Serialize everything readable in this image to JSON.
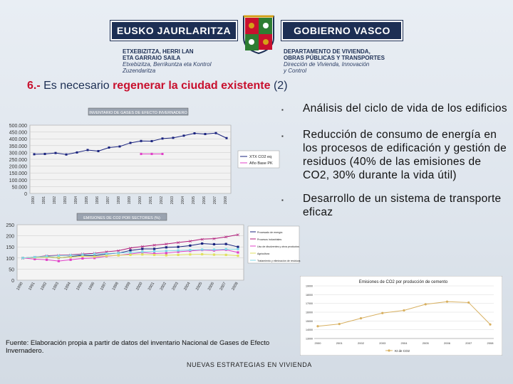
{
  "header": {
    "logo_left": "EUSKO JAURLARITZA",
    "logo_right": "GOBIERNO VASCO",
    "dept_left_bold": [
      "ETXEBIZITZA, HERRI LAN",
      "ETA GARRAIO SAILA"
    ],
    "dept_left_ital": [
      "Etxebizitza, Berrikuntza eta Kontrol",
      "Zuzendaritza"
    ],
    "dept_right_bold": [
      "DEPARTAMENTO DE VIVIENDA,",
      "OBRAS PÚBLICAS Y TRANSPORTES"
    ],
    "dept_right_ital": [
      "Dirección de Vivienda, Innovación",
      "y Control"
    ]
  },
  "title": {
    "num": "6.-",
    "plain": "Es necesario",
    "highlight": "regenerar la ciudad existente",
    "suffix": "(2)"
  },
  "bullets": [
    "Análisis del ciclo de vida de los edificios",
    "Reducción de consumo de energía en los procesos de edificación y gestión de residuos (40% de las emisiones de CO2, 30% durante la vida útil)",
    "Desarrollo de un sistema de transporte eficaz"
  ],
  "source": "Fuente: Elaboración propia a partir de datos del inventario Nacional de Gases de Efecto Invernadero.",
  "footer": "NUEVAS ESTRATEGIAS EN VIVIENDA",
  "colors": {
    "navy": "#1d2f54",
    "red": "#c8102e",
    "blue_series": "#1a237e",
    "magenta_series": "#e040c8",
    "orange_series": "#d8b060"
  },
  "chart_data": [
    {
      "type": "line",
      "title": "INVENTARIO DE GASES DE EFECTO INVERNADERO",
      "x": [
        "1990",
        "1991",
        "1992",
        "1993",
        "1994",
        "1995",
        "1996",
        "1997",
        "1998",
        "1999",
        "2000",
        "2001",
        "2002",
        "2003",
        "2004",
        "2005",
        "2006",
        "2007",
        "2008"
      ],
      "yticks": [
        "0",
        "50.000",
        "100.000",
        "150.000",
        "200.000",
        "250.000",
        "300.000",
        "350.000",
        "400.000",
        "450.000",
        "500.000"
      ],
      "ylim": [
        0,
        500000
      ],
      "series": [
        {
          "name": "XTX CO2 eq",
          "values": [
            287000,
            289000,
            296000,
            285000,
            300000,
            318000,
            310000,
            336000,
            344000,
            370000,
            384000,
            383000,
            402000,
            407000,
            423000,
            440000,
            435000,
            442000,
            405000
          ]
        },
        {
          "name": "Año Base PK",
          "values": [
            null,
            null,
            null,
            null,
            null,
            null,
            null,
            null,
            null,
            null,
            null,
            null,
            null,
            null,
            null,
            null,
            null,
            null,
            null
          ],
          "constant": 289000,
          "x_range": [
            "2000",
            "2002"
          ]
        }
      ],
      "legend": "right"
    },
    {
      "type": "line",
      "title": "EMISIONES DE CO2 POR SECTORES (%)",
      "x": [
        "1990",
        "1991",
        "1992",
        "1993",
        "1994",
        "1995",
        "1996",
        "1997",
        "1998",
        "1999",
        "2000",
        "2001",
        "2002",
        "2003",
        "2004",
        "2005",
        "2006",
        "2007",
        "2008"
      ],
      "yticks": [
        "0",
        "50",
        "100",
        "150",
        "200",
        "250"
      ],
      "ylim": [
        0,
        250
      ],
      "series": [
        {
          "name": "Procesado de energía",
          "values": [
            100,
            103,
            106,
            101,
            106,
            112,
            110,
            118,
            122,
            134,
            141,
            141,
            148,
            150,
            156,
            165,
            162,
            163,
            150
          ]
        },
        {
          "name": "Procesos industriales",
          "values": [
            100,
            104,
            110,
            112,
            114,
            118,
            121,
            128,
            133,
            145,
            152,
            158,
            163,
            170,
            176,
            185,
            187,
            195,
            205
          ]
        },
        {
          "name": "Uso de disolventes y otros productos",
          "values": [
            100,
            95,
            92,
            86,
            92,
            98,
            100,
            108,
            112,
            118,
            125,
            120,
            122,
            128,
            132,
            136,
            134,
            137,
            125
          ]
        },
        {
          "name": "Agricultura",
          "values": [
            100,
            102,
            104,
            102,
            104,
            108,
            106,
            110,
            112,
            114,
            116,
            114,
            112,
            114,
            116,
            117,
            115,
            114,
            110
          ]
        },
        {
          "name": "Tratamiento y eliminación de residuos",
          "values": [
            100,
            104,
            108,
            110,
            112,
            115,
            118,
            120,
            122,
            125,
            128,
            130,
            132,
            134,
            136,
            138,
            138,
            140,
            140
          ]
        }
      ],
      "legend": "right"
    },
    {
      "type": "line",
      "title": "Emisiones de CO2 por producción de cemento",
      "x": [
        "2000",
        "2001",
        "2002",
        "2003",
        "2004",
        "2005",
        "2006",
        "2007",
        "2008"
      ],
      "yticks": [
        "13000",
        "14000",
        "15000",
        "16000",
        "17000",
        "18000",
        "19000"
      ],
      "ylim": [
        13000,
        19000
      ],
      "series": [
        {
          "name": "Kt de CO2",
          "values": [
            14400,
            14650,
            15300,
            15900,
            16200,
            16900,
            17200,
            17100,
            14600
          ]
        }
      ],
      "legend": "bottom"
    }
  ]
}
